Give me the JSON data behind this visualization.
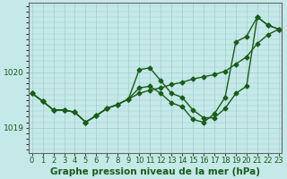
{
  "xlabel": "Graphe pression niveau de la mer (hPa)",
  "background_color": "#c5e8e8",
  "grid_color": "#9dcfcf",
  "line_color": "#1a5c1a",
  "xlim": [
    -0.3,
    23.3
  ],
  "ylim": [
    1018.55,
    1021.25
  ],
  "yticks": [
    1019,
    1020
  ],
  "xticks": [
    0,
    1,
    2,
    3,
    4,
    5,
    6,
    7,
    8,
    9,
    10,
    11,
    12,
    13,
    14,
    15,
    16,
    17,
    18,
    19,
    20,
    21,
    22,
    23
  ],
  "series": [
    [
      1019.62,
      1019.48,
      1019.32,
      1019.32,
      1019.28,
      1019.1,
      1019.22,
      1019.35,
      1019.42,
      1019.52,
      1019.62,
      1019.68,
      1019.72,
      1019.78,
      1019.82,
      1019.88,
      1019.92,
      1019.96,
      1020.02,
      1020.15,
      1020.28,
      1020.52,
      1020.68,
      1020.78
    ],
    [
      1019.62,
      1019.48,
      1019.32,
      1019.32,
      1019.28,
      1019.1,
      1019.22,
      1019.35,
      1019.42,
      1019.52,
      1020.05,
      1020.08,
      1019.85,
      1019.62,
      1019.55,
      1019.32,
      1019.18,
      1019.18,
      1019.35,
      1019.62,
      1019.75,
      1021.0,
      1020.85,
      1020.78
    ],
    [
      1019.62,
      1019.48,
      1019.32,
      1019.32,
      1019.28,
      1019.1,
      1019.22,
      1019.35,
      1019.42,
      1019.52,
      1019.72,
      1019.75,
      1019.62,
      1019.45,
      1019.38,
      1019.15,
      1019.1,
      1019.25,
      1019.55,
      1020.55,
      1020.65,
      1021.0,
      1020.85,
      1020.78
    ]
  ],
  "marker": "D",
  "markersize": 2.5,
  "linewidth": 1.0,
  "xlabel_fontsize": 7.5,
  "tick_fontsize": 6.0,
  "ytick_fontsize": 6.5,
  "spine_color": "#666666"
}
